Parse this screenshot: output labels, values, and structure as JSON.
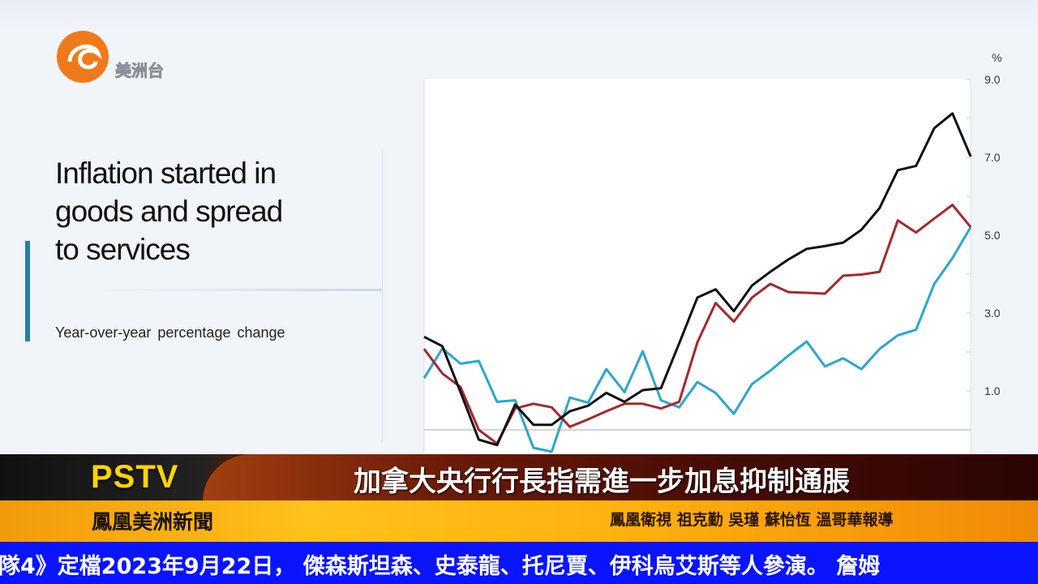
{
  "logo": {
    "text": "美洲台",
    "colors": {
      "swirl": "#f07a1a"
    }
  },
  "slide": {
    "title_lines": [
      "Inflation started in",
      "goods and spread",
      "to services"
    ],
    "subtitle": "Year-over-year percentage change"
  },
  "chart_data": {
    "type": "line",
    "title": "Inflation started in goods and spread to services",
    "subtitle": "Year-over-year percentage change",
    "ylabel": "%",
    "y_axis_position": "right",
    "ylim": [
      -1,
      9
    ],
    "yticks": [
      "9.0",
      "7.0",
      "5.0",
      "3.0",
      "1.0"
    ],
    "ytick_values": [
      9,
      7,
      5,
      3,
      1
    ],
    "minor_ticks": [
      8,
      6,
      4,
      2
    ],
    "zero_line": true,
    "grid": false,
    "x_labels_visible": false,
    "x": [
      1,
      2,
      3,
      4,
      5,
      6,
      7,
      8,
      9,
      10,
      11,
      12,
      13,
      14,
      15,
      16,
      17,
      18,
      19,
      20,
      21,
      22,
      23,
      24,
      25,
      26,
      27,
      28,
      29,
      30,
      31
    ],
    "series": [
      {
        "color": "#111111",
        "values": [
          2.39,
          2.15,
          0.97,
          -0.25,
          -0.39,
          0.65,
          0.13,
          0.13,
          0.48,
          0.62,
          0.95,
          0.72,
          1.02,
          1.07,
          2.22,
          3.4,
          3.61,
          3.05,
          3.71,
          4.06,
          4.38,
          4.65,
          4.72,
          4.81,
          5.14,
          5.7,
          6.67,
          6.78,
          7.75,
          8.13,
          7.02
        ]
      },
      {
        "color": "#a8282a",
        "values": [
          2.08,
          1.45,
          1.1,
          0.0,
          -0.35,
          0.55,
          0.67,
          0.58,
          0.08,
          0.27,
          0.48,
          0.67,
          0.67,
          0.55,
          0.72,
          2.25,
          3.26,
          2.78,
          3.4,
          3.75,
          3.54,
          3.52,
          3.5,
          3.96,
          3.99,
          4.06,
          5.38,
          5.07,
          5.43,
          5.78,
          5.21
        ]
      },
      {
        "color": "#2aa7cf",
        "values": [
          1.33,
          2.09,
          1.7,
          1.77,
          0.72,
          0.76,
          -0.46,
          -0.56,
          0.83,
          0.7,
          1.56,
          0.97,
          2.02,
          0.76,
          0.58,
          1.23,
          0.95,
          0.41,
          1.18,
          1.52,
          1.91,
          2.27,
          1.63,
          1.84,
          1.56,
          2.08,
          2.43,
          2.57,
          3.75,
          4.41,
          5.21
        ]
      }
    ]
  },
  "banner": {
    "brand": "PSTV",
    "headline": "加拿大央行行長指需進一步加息抑制通脹",
    "program": "鳳凰美洲新聞",
    "credit": "鳳凰衛視 祖克勤 吳瑾 蘇怡恆 溫哥華報導",
    "ticker": "隊4》定檔2023年9月22日， 傑森斯坦森、史泰龍、托尼賈、伊科烏艾斯等人參演。 詹姆",
    "colors": {
      "brand": "#ffd400",
      "ticker_bg": "#0a14ff",
      "band": "#ffb10f"
    }
  }
}
